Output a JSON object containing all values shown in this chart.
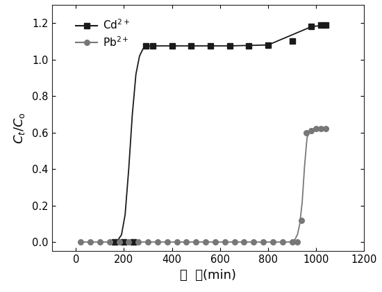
{
  "title": "",
  "xlabel": "时  间(min)",
  "xlim": [
    -100,
    1200
  ],
  "ylim": [
    -0.05,
    1.3
  ],
  "xticks": [
    0,
    200,
    400,
    600,
    800,
    1000,
    1200
  ],
  "yticks": [
    0.0,
    0.2,
    0.4,
    0.6,
    0.8,
    1.0,
    1.2
  ],
  "background_color": "#ffffff",
  "cd_color": "#1a1a1a",
  "pb_color": "#777777",
  "cd_points_x": [
    160,
    200,
    240,
    290,
    320,
    400,
    480,
    560,
    640,
    720,
    800,
    900,
    980,
    1020,
    1040
  ],
  "cd_points_y": [
    0.0,
    0.0,
    0.0,
    1.075,
    1.075,
    1.075,
    1.075,
    1.075,
    1.075,
    1.075,
    1.08,
    1.1,
    1.18,
    1.19,
    1.19
  ],
  "pb_points_x": [
    20,
    60,
    100,
    140,
    180,
    220,
    260,
    300,
    340,
    380,
    420,
    460,
    500,
    540,
    580,
    620,
    660,
    700,
    740,
    780,
    820,
    860,
    900,
    920,
    940,
    960,
    980,
    1000,
    1020,
    1040
  ],
  "pb_points_y": [
    0.0,
    0.0,
    0.0,
    0.0,
    0.0,
    0.0,
    0.0,
    0.0,
    0.0,
    0.0,
    0.0,
    0.0,
    0.0,
    0.0,
    0.0,
    0.0,
    0.0,
    0.0,
    0.0,
    0.0,
    0.0,
    0.0,
    0.0,
    0.0,
    0.12,
    0.6,
    0.61,
    0.62,
    0.62,
    0.62
  ],
  "cd_line_x": [
    155,
    165,
    175,
    190,
    205,
    220,
    235,
    250,
    265,
    280,
    295,
    310,
    330,
    360,
    400,
    480,
    640,
    800,
    980,
    1040
  ],
  "cd_line_y": [
    0.0,
    0.0,
    0.01,
    0.04,
    0.15,
    0.4,
    0.7,
    0.92,
    1.02,
    1.06,
    1.07,
    1.075,
    1.075,
    1.075,
    1.075,
    1.075,
    1.075,
    1.08,
    1.18,
    1.19
  ],
  "pb_line_x": [
    20,
    870,
    885,
    900,
    912,
    922,
    932,
    942,
    952,
    962,
    972,
    985,
    1005,
    1025,
    1040
  ],
  "pb_line_y": [
    0.0,
    0.0,
    0.0,
    0.005,
    0.015,
    0.04,
    0.1,
    0.22,
    0.42,
    0.57,
    0.61,
    0.62,
    0.62,
    0.62,
    0.62
  ],
  "legend_cd_label": "Cd$^{2+}$",
  "legend_pb_label": "Pb$^{2+}$",
  "marker_cd_size": 6,
  "marker_pb_size": 5.5
}
